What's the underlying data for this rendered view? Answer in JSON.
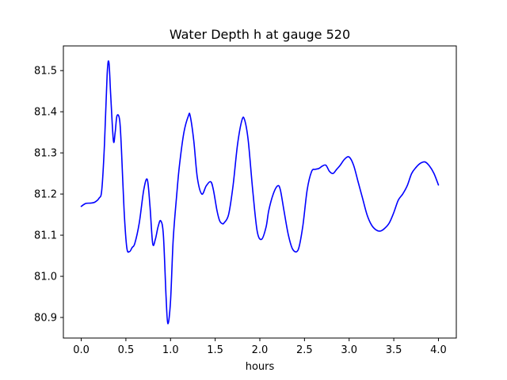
{
  "chart_data": {
    "type": "line",
    "title": "Water Depth h at gauge 520",
    "xlabel": "hours",
    "ylabel": "",
    "xlim": [
      -0.2,
      4.2
    ],
    "ylim": [
      80.85,
      81.56
    ],
    "x_ticks": [
      0.0,
      0.5,
      1.0,
      1.5,
      2.0,
      2.5,
      3.0,
      3.5,
      4.0
    ],
    "x_tick_labels": [
      "0.0",
      "0.5",
      "1.0",
      "1.5",
      "2.0",
      "2.5",
      "3.0",
      "3.5",
      "4.0"
    ],
    "y_ticks": [
      80.9,
      81.0,
      81.1,
      81.2,
      81.3,
      81.4,
      81.5
    ],
    "y_tick_labels": [
      "80.9",
      "81.0",
      "81.1",
      "81.2",
      "81.3",
      "81.4",
      "81.5"
    ],
    "grid": false,
    "legend": "none",
    "series": [
      {
        "color": "#0000ff",
        "x": [
          0.0,
          0.05,
          0.1,
          0.15,
          0.2,
          0.23,
          0.26,
          0.29,
          0.31,
          0.33,
          0.36,
          0.38,
          0.4,
          0.43,
          0.45,
          0.48,
          0.51,
          0.54,
          0.57,
          0.6,
          0.65,
          0.7,
          0.74,
          0.77,
          0.8,
          0.83,
          0.86,
          0.89,
          0.92,
          0.95,
          0.97,
          1.0,
          1.03,
          1.07,
          1.1,
          1.15,
          1.2,
          1.22,
          1.26,
          1.3,
          1.35,
          1.4,
          1.45,
          1.48,
          1.52,
          1.55,
          1.58,
          1.6,
          1.65,
          1.7,
          1.75,
          1.8,
          1.83,
          1.87,
          1.92,
          1.97,
          2.02,
          2.07,
          2.1,
          2.15,
          2.2,
          2.23,
          2.27,
          2.32,
          2.37,
          2.43,
          2.48,
          2.53,
          2.58,
          2.62,
          2.66,
          2.7,
          2.74,
          2.78,
          2.82,
          2.86,
          2.9,
          2.95,
          3.0,
          3.05,
          3.1,
          3.15,
          3.2,
          3.25,
          3.3,
          3.35,
          3.4,
          3.45,
          3.5,
          3.55,
          3.6,
          3.65,
          3.7,
          3.75,
          3.8,
          3.85,
          3.9,
          3.95,
          4.0
        ],
        "y": [
          81.17,
          81.177,
          81.178,
          81.18,
          81.19,
          81.21,
          81.32,
          81.49,
          81.52,
          81.44,
          81.33,
          81.35,
          81.39,
          81.38,
          81.31,
          81.16,
          81.07,
          81.06,
          81.07,
          81.08,
          81.13,
          81.21,
          81.235,
          81.17,
          81.08,
          81.09,
          81.12,
          81.135,
          81.1,
          80.95,
          80.885,
          80.94,
          81.09,
          81.2,
          81.27,
          81.35,
          81.39,
          81.39,
          81.33,
          81.24,
          81.2,
          81.22,
          81.23,
          81.21,
          81.16,
          81.135,
          81.128,
          81.13,
          81.15,
          81.22,
          81.32,
          81.38,
          81.38,
          81.33,
          81.21,
          81.11,
          81.09,
          81.12,
          81.16,
          81.2,
          81.22,
          81.21,
          81.16,
          81.1,
          81.065,
          81.065,
          81.12,
          81.21,
          81.255,
          81.26,
          81.262,
          81.268,
          81.27,
          81.255,
          81.25,
          81.26,
          81.27,
          81.285,
          81.29,
          81.27,
          81.23,
          81.19,
          81.15,
          81.125,
          81.113,
          81.11,
          81.117,
          81.13,
          81.155,
          81.185,
          81.2,
          81.22,
          81.25,
          81.265,
          81.275,
          81.278,
          81.268,
          81.25,
          81.222
        ]
      }
    ]
  }
}
